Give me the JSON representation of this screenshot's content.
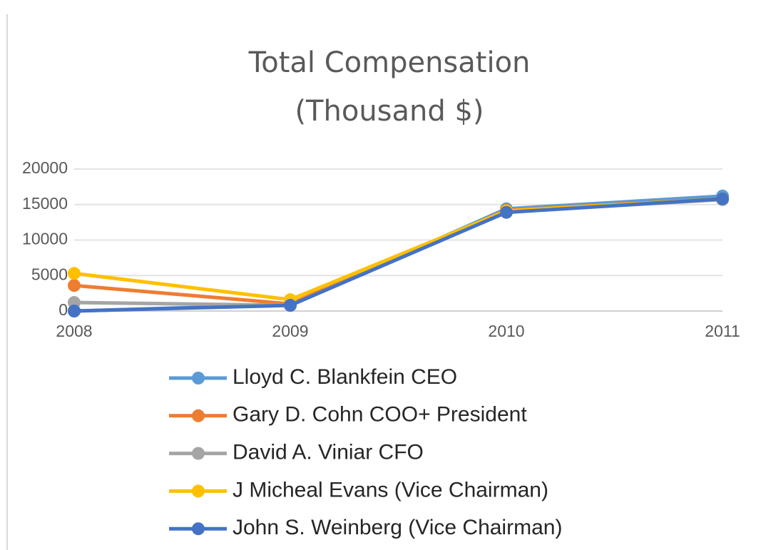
{
  "chart_data": {
    "type": "line",
    "title": [
      "Total Compensation",
      "(Thousand $)"
    ],
    "x": [
      2008,
      2009,
      2010,
      2011
    ],
    "xlim": [
      2008,
      2011
    ],
    "xticks": [
      2008,
      2009,
      2010,
      2011
    ],
    "ylim": [
      0,
      20000
    ],
    "yticks": [
      0,
      5000,
      10000,
      15000,
      20000
    ],
    "grid": true,
    "legend": "bottom",
    "series": [
      {
        "name": "Lloyd C. Blankfein CEO",
        "color": "#5b9bd5",
        "values": [
          0,
          900,
          14400,
          16200
        ]
      },
      {
        "name": "Gary D. Cohn COO+ President",
        "color": "#ed7d31",
        "values": [
          3600,
          1000,
          14200,
          15800
        ]
      },
      {
        "name": "David A. Viniar CFO",
        "color": "#a5a5a5",
        "values": [
          1200,
          800,
          14000,
          15700
        ]
      },
      {
        "name": "J Micheal Evans (Vice Chairman)",
        "color": "#ffc000",
        "values": [
          5300,
          1600,
          14100,
          15800
        ]
      },
      {
        "name": "John S. Weinberg (Vice Chairman)",
        "color": "#4472c4",
        "values": [
          0,
          800,
          13900,
          15800
        ]
      }
    ]
  }
}
